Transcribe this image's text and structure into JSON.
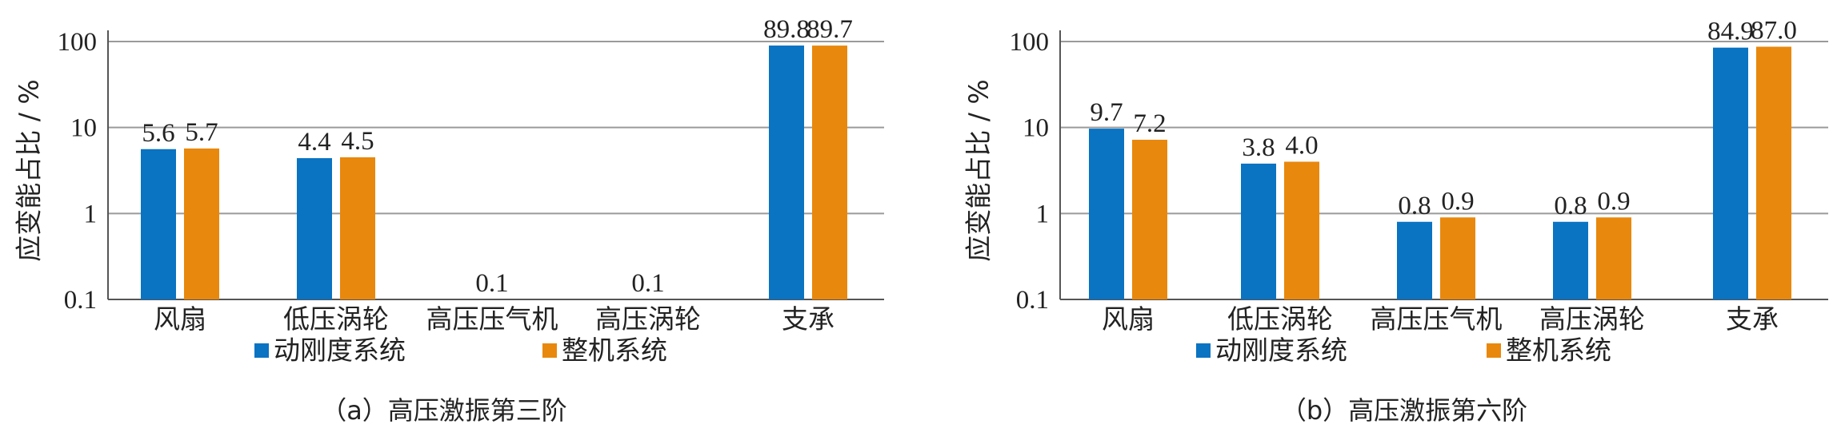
{
  "colors": {
    "series1": "#0a73c2",
    "series2": "#e8880d",
    "grid": "#9a9a9a",
    "axis": "#555555"
  },
  "chart_data": [
    {
      "type": "bar",
      "caption": "（a）高压激振第三阶",
      "ylabel": "应变能占比 / %",
      "yscale": "log",
      "ylim": [
        0.1,
        100
      ],
      "yticks": [
        "0.1",
        "1",
        "10",
        "100"
      ],
      "grid": true,
      "legend_position": "bottom",
      "categories": [
        "风扇",
        "低压涡轮",
        "高压压气机",
        "高压涡轮",
        "支承"
      ],
      "series": [
        {
          "name": "动刚度系统",
          "values": [
            5.6,
            4.4,
            0.1,
            0.1,
            89.8
          ],
          "labels": [
            "5.6",
            "4.4",
            "0.1",
            "0.1",
            "89.8"
          ]
        },
        {
          "name": "整机系统",
          "values": [
            5.7,
            4.5,
            null,
            null,
            89.7
          ],
          "labels": [
            "5.7",
            "4.5",
            "",
            "",
            "89.7"
          ]
        }
      ]
    },
    {
      "type": "bar",
      "caption": "（b）高压激振第六阶",
      "ylabel": "应变能占比 / %",
      "yscale": "log",
      "ylim": [
        0.1,
        100
      ],
      "yticks": [
        "0.1",
        "1",
        "10",
        "100"
      ],
      "grid": true,
      "legend_position": "bottom",
      "categories": [
        "风扇",
        "低压涡轮",
        "高压压气机",
        "高压涡轮",
        "支承"
      ],
      "series": [
        {
          "name": "动刚度系统",
          "values": [
            9.7,
            3.8,
            0.8,
            0.8,
            84.9
          ],
          "labels": [
            "9.7",
            "3.8",
            "0.8",
            "0.8",
            "84.9"
          ]
        },
        {
          "name": "整机系统",
          "values": [
            7.2,
            4.0,
            0.9,
            0.9,
            87.0
          ],
          "labels": [
            "7.2",
            "4.0",
            "0.9",
            "0.9",
            "87.0"
          ]
        }
      ]
    }
  ]
}
